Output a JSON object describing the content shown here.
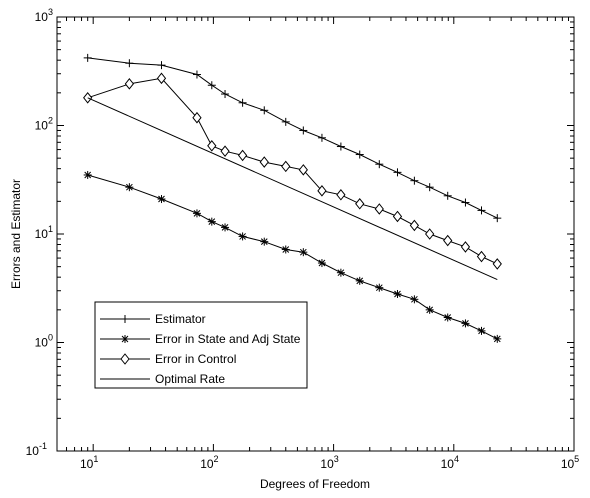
{
  "chart_data": {
    "type": "line",
    "xlabel": "Degrees of Freedom",
    "ylabel": "Errors and Estimator",
    "xscale": "log",
    "yscale": "log",
    "xlim": [
      5,
      100000
    ],
    "ylim": [
      0.1,
      1000
    ],
    "grid": false,
    "legend_position": "bottom-left",
    "x_ticks": [
      {
        "value": 10,
        "base": "10",
        "exp": "1"
      },
      {
        "value": 100,
        "base": "10",
        "exp": "2"
      },
      {
        "value": 1000,
        "base": "10",
        "exp": "3"
      },
      {
        "value": 10000,
        "base": "10",
        "exp": "4"
      },
      {
        "value": 100000,
        "base": "10",
        "exp": "5"
      }
    ],
    "y_ticks": [
      {
        "value": 0.1,
        "base": "10",
        "exp": "-1"
      },
      {
        "value": 1,
        "base": "10",
        "exp": "0"
      },
      {
        "value": 10,
        "base": "10",
        "exp": "1"
      },
      {
        "value": 100,
        "base": "10",
        "exp": "2"
      },
      {
        "value": 1000,
        "base": "10",
        "exp": "3"
      }
    ],
    "series": [
      {
        "name": "Estimator",
        "marker": "plus",
        "points": [
          [
            9,
            420
          ],
          [
            20,
            375
          ],
          [
            37,
            360
          ],
          [
            73,
            295
          ],
          [
            97,
            235
          ],
          [
            125,
            195
          ],
          [
            175,
            162
          ],
          [
            265,
            138
          ],
          [
            400,
            108
          ],
          [
            560,
            90
          ],
          [
            800,
            77
          ],
          [
            1150,
            64
          ],
          [
            1650,
            54
          ],
          [
            2400,
            44
          ],
          [
            3400,
            37
          ],
          [
            4700,
            31
          ],
          [
            6300,
            27
          ],
          [
            8900,
            22.5
          ],
          [
            12500,
            19.5
          ],
          [
            17000,
            16.5
          ],
          [
            23000,
            14
          ]
        ]
      },
      {
        "name": "Error in State and Adj State",
        "marker": "asterisk",
        "points": [
          [
            9,
            35
          ],
          [
            20,
            27
          ],
          [
            37,
            21
          ],
          [
            73,
            15.5
          ],
          [
            97,
            13
          ],
          [
            125,
            11.5
          ],
          [
            175,
            9.5
          ],
          [
            265,
            8.5
          ],
          [
            400,
            7.2
          ],
          [
            560,
            6.8
          ],
          [
            800,
            5.4
          ],
          [
            1150,
            4.4
          ],
          [
            1650,
            3.7
          ],
          [
            2400,
            3.2
          ],
          [
            3400,
            2.8
          ],
          [
            4700,
            2.5
          ],
          [
            6300,
            2
          ],
          [
            8900,
            1.7
          ],
          [
            12500,
            1.5
          ],
          [
            17000,
            1.28
          ],
          [
            23000,
            1.08
          ]
        ]
      },
      {
        "name": "Error in Control",
        "marker": "diamond",
        "points": [
          [
            9,
            180
          ],
          [
            20,
            242
          ],
          [
            37,
            272
          ],
          [
            73,
            118
          ],
          [
            97,
            65
          ],
          [
            125,
            58
          ],
          [
            175,
            53
          ],
          [
            265,
            46
          ],
          [
            400,
            42
          ],
          [
            560,
            39
          ],
          [
            800,
            25
          ],
          [
            1150,
            23
          ],
          [
            1650,
            19
          ],
          [
            2400,
            17
          ],
          [
            3400,
            14.5
          ],
          [
            4700,
            12
          ],
          [
            6300,
            10
          ],
          [
            8900,
            8.7
          ],
          [
            12500,
            7.6
          ],
          [
            17000,
            6.2
          ],
          [
            23000,
            5.3
          ]
        ]
      },
      {
        "name": "Optimal Rate",
        "marker": "none",
        "points": [
          [
            9,
            180
          ],
          [
            23000,
            3.8
          ]
        ]
      }
    ]
  }
}
